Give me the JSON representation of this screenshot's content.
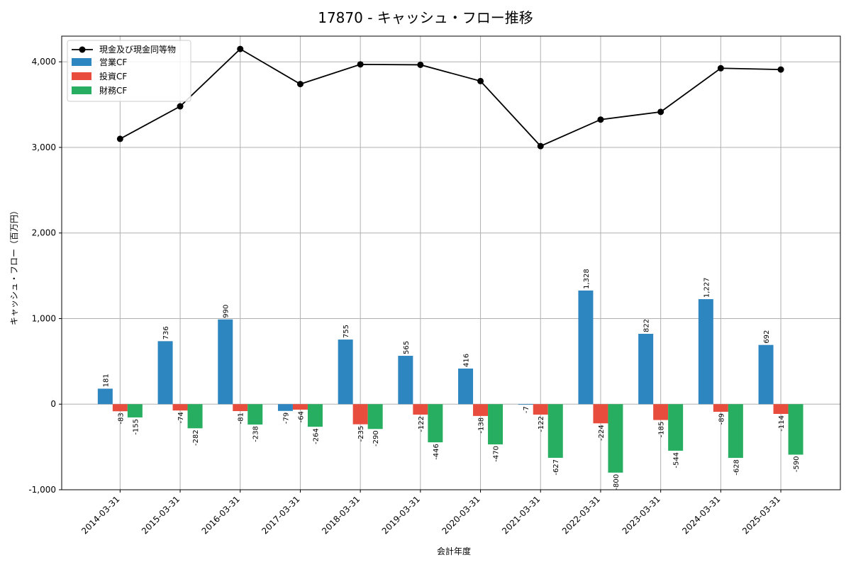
{
  "chart_data": {
    "type": "bar",
    "title": "17870 - キャッシュ・フロー推移",
    "xlabel": "会計年度",
    "ylabel": "キャッシュ・フロー（百万円）",
    "ylim": [
      -1000,
      4300
    ],
    "yticks": [
      -1000,
      0,
      1000,
      2000,
      3000,
      4000
    ],
    "ytick_labels": [
      "-1,000",
      "0",
      "1,000",
      "2,000",
      "3,000",
      "4,000"
    ],
    "grid": true,
    "legend_position": "top-left",
    "categories": [
      "2014-03-31",
      "2015-03-31",
      "2016-03-31",
      "2017-03-31",
      "2018-03-31",
      "2019-03-31",
      "2020-03-31",
      "2021-03-31",
      "2022-03-31",
      "2023-03-31",
      "2024-03-31",
      "2025-03-31"
    ],
    "line_series": {
      "name": "現金及び現金同等物",
      "color": "#000000",
      "values": [
        3100,
        3480,
        4150,
        3740,
        3970,
        3965,
        3775,
        3015,
        3325,
        3415,
        3925,
        3910
      ]
    },
    "series": [
      {
        "name": "営業CF",
        "color": "#2e86c1",
        "values": [
          181,
          736,
          990,
          -79,
          755,
          565,
          416,
          -7,
          1328,
          822,
          1227,
          692
        ],
        "labels": [
          "181",
          "736",
          "990",
          "-79",
          "755",
          "565",
          "416",
          "-7",
          "1,328",
          "822",
          "1,227",
          "692"
        ]
      },
      {
        "name": "投資CF",
        "color": "#e74c3c",
        "values": [
          -83,
          -74,
          -81,
          -64,
          -235,
          -122,
          -138,
          -122,
          -224,
          -185,
          -89,
          -114
        ],
        "labels": [
          "-83",
          "-74",
          "-81",
          "-64",
          "-235",
          "-122",
          "-138",
          "-122",
          "-224",
          "-185",
          "-89",
          "-114"
        ]
      },
      {
        "name": "財務CF",
        "color": "#27ae60",
        "values": [
          -155,
          -282,
          -238,
          -264,
          -290,
          -446,
          -470,
          -627,
          -800,
          -544,
          -628,
          -590
        ],
        "labels": [
          "-155",
          "-282",
          "-238",
          "-264",
          "-290",
          "-446",
          "-470",
          "-627",
          "-800",
          "-544",
          "-628",
          "-590"
        ]
      }
    ]
  }
}
